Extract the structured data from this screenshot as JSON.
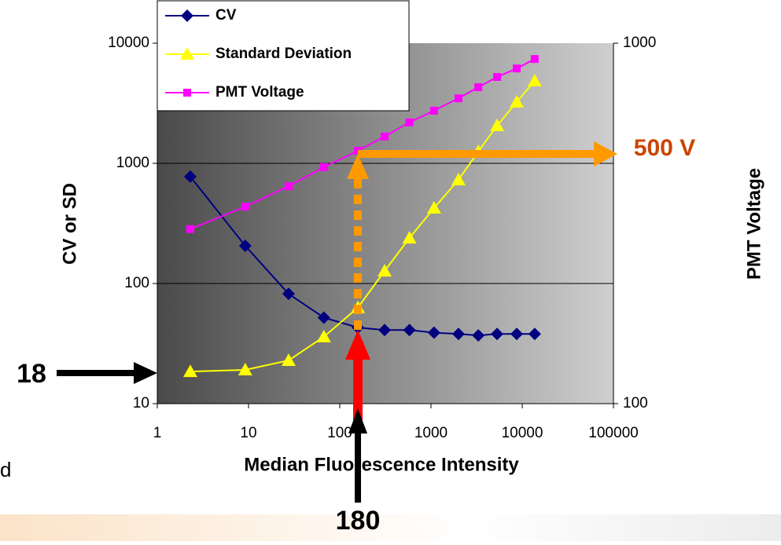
{
  "chart_data": {
    "type": "line",
    "x_label": "Median Fluorescence Intensity",
    "y_label": "CV or SD",
    "y2_label": "PMT Voltage",
    "x_log": true,
    "y_log": true,
    "y2_log": true,
    "grid": true,
    "legend": "top-left",
    "x": [
      2.3,
      9.2,
      27.5,
      67,
      158,
      310,
      580,
      1080,
      2000,
      3300,
      5300,
      8700,
      13700
    ],
    "series": [
      {
        "name": "CV",
        "color": "#000080",
        "marker": "diamond",
        "axis": "y",
        "values": [
          775,
          206,
          82,
          52,
          43,
          41,
          41,
          39,
          38,
          37,
          38,
          38,
          38
        ]
      },
      {
        "name": "Standard Deviation",
        "color": "#ffff00",
        "marker": "triangle",
        "axis": "y",
        "values": [
          18.5,
          19.1,
          22.9,
          36,
          63,
          127,
          239,
          424,
          729,
          1254,
          2060,
          3240,
          4860
        ]
      },
      {
        "name": "PMT Voltage",
        "color": "#ff00ff",
        "marker": "square",
        "axis": "y2",
        "values": [
          305,
          352,
          401,
          453,
          503,
          551,
          603,
          650,
          703,
          755,
          806,
          851,
          904
        ]
      }
    ],
    "xlim": [
      1,
      100000
    ],
    "xticks": [
      1,
      10,
      100,
      1000,
      10000,
      100000
    ],
    "ylim": [
      10,
      10000
    ],
    "yticks": [
      10,
      100,
      1000,
      10000
    ],
    "y2lim": [
      100,
      1000
    ],
    "y2ticks": [
      100,
      1000
    ],
    "annotations": [
      "500 V",
      "18",
      "180",
      "d"
    ]
  }
}
